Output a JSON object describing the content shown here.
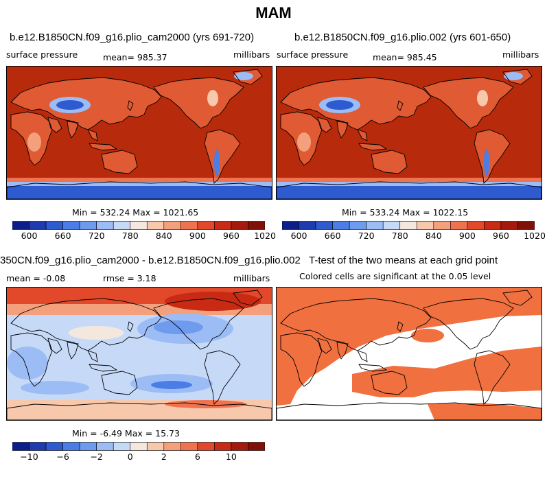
{
  "page": {
    "title": "MAM"
  },
  "panels": [
    {
      "id": "top-left",
      "title": "b.e12.B1850CN.f09_g16.plio_cam2000 (yrs 691-720)",
      "left_label": "surface pressure",
      "center_label": "mean= 985.37",
      "right_label": "millibars",
      "minmax": "Min = 532.24 Max = 1021.65",
      "field": "pressure"
    },
    {
      "id": "top-right",
      "title": "b.e12.B1850CN.f09_g16.plio.002 (yrs 601-650)",
      "left_label": "surface pressure",
      "center_label": "mean= 985.45",
      "right_label": "millibars",
      "minmax": "Min = 533.24 Max = 1022.15",
      "field": "pressure"
    },
    {
      "id": "bottom-left",
      "title": "350CN.f09_g16.plio_cam2000 - b.e12.B1850CN.f09_g16.plio.002",
      "left_label": "mean =  -0.08",
      "center_label": "rmse =   3.18",
      "right_label": "millibars",
      "minmax": "Min =  -6.49 Max =  15.73",
      "field": "difference"
    },
    {
      "id": "bottom-right",
      "title": "T-test of the two means at each grid point",
      "subtitle": "Colored cells are significant at the 0.05 level",
      "field": "ttest"
    }
  ],
  "colorbars": {
    "pressure": {
      "colors": [
        "#0d1e8c",
        "#1f3bb0",
        "#2f5bd0",
        "#4a7ee6",
        "#6f9bef",
        "#9cbcf5",
        "#c6daf8",
        "#f4e8de",
        "#f8c8ad",
        "#f4a07c",
        "#ef7350",
        "#e2482a",
        "#c92a14",
        "#a51a0a",
        "#801008"
      ],
      "ticks": [
        "600",
        "660",
        "720",
        "780",
        "840",
        "900",
        "960",
        "1020"
      ]
    },
    "difference": {
      "colors": [
        "#0d1e8c",
        "#1f3bb0",
        "#2f5bd0",
        "#4a7ee6",
        "#6f9bef",
        "#9cbcf5",
        "#c6daf8",
        "#f4e8de",
        "#f8c8ad",
        "#f4a07c",
        "#ef7350",
        "#e2482a",
        "#c92a14",
        "#a51a0a",
        "#801008"
      ],
      "ticks": [
        "-10",
        "-6",
        "-2",
        "0",
        "2",
        "6",
        "10"
      ]
    }
  },
  "chart_data": [
    {
      "type": "heatmap",
      "title": "b.e12.B1850CN.f09_g16.plio_cam2000 (yrs 691-720)",
      "variable": "surface pressure",
      "units": "millibars",
      "mean": 985.37,
      "min": 532.24,
      "max": 1021.65,
      "colorbar_ticks": [
        600,
        660,
        720,
        780,
        840,
        900,
        960,
        1020
      ]
    },
    {
      "type": "heatmap",
      "title": "b.e12.B1850CN.f09_g16.plio.002 (yrs 601-650)",
      "variable": "surface pressure",
      "units": "millibars",
      "mean": 985.45,
      "min": 533.24,
      "max": 1022.15,
      "colorbar_ticks": [
        600,
        660,
        720,
        780,
        840,
        900,
        960,
        1020
      ]
    },
    {
      "type": "heatmap",
      "title": "350CN.f09_g16.plio_cam2000 - b.e12.B1850CN.f09_g16.plio.002",
      "units": "millibars",
      "mean": -0.08,
      "rmse": 3.18,
      "min": -6.49,
      "max": 15.73,
      "colorbar_ticks": [
        -10,
        -6,
        -2,
        0,
        2,
        6,
        10
      ]
    },
    {
      "type": "heatmap",
      "title": "T-test of the two means at each grid point",
      "subtitle": "Colored cells are significant at the 0.05 level"
    }
  ]
}
